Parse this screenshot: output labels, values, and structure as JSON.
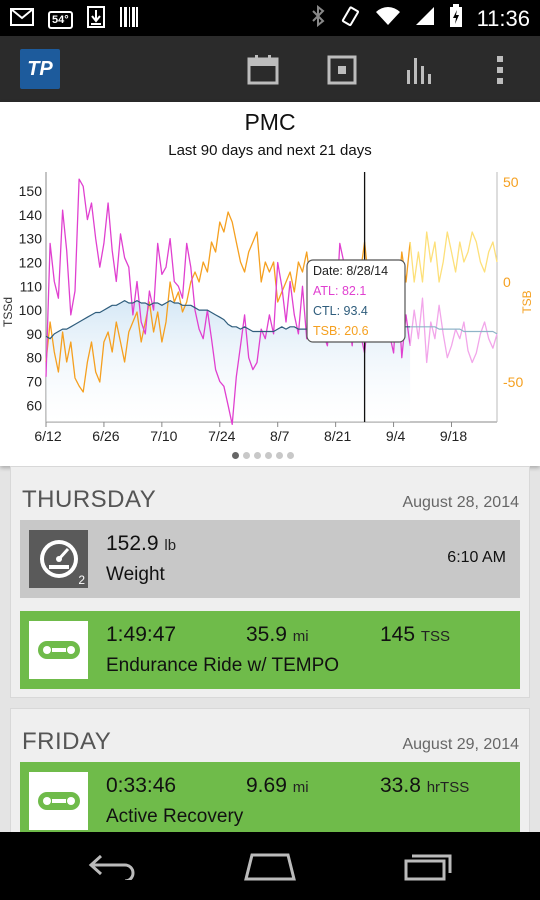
{
  "status_bar": {
    "time": "11:36",
    "temperature": "54°",
    "icons": [
      "gmail-icon",
      "weather-icon",
      "download-icon",
      "barcode-icon",
      "bluetooth-icon",
      "vibrate-icon",
      "wifi-icon",
      "signal-icon",
      "battery-icon"
    ]
  },
  "action_bar": {
    "logo_text": "TP",
    "icons": [
      "calendar-icon",
      "workout-icon",
      "dashboard-chart-icon",
      "overflow-menu-icon"
    ]
  },
  "chart": {
    "title": "PMC",
    "subtitle": "Last 90 days and next 21 days",
    "pager": {
      "pages": 6,
      "active": 0
    }
  },
  "chart_data": {
    "type": "line",
    "title": "PMC",
    "subtitle": "Last 90 days and next 21 days",
    "ylabel": "TSSd",
    "y2label": "TSB",
    "x_ticks": [
      "6/12",
      "6/26",
      "7/10",
      "7/24",
      "8/7",
      "8/21",
      "9/4",
      "9/18"
    ],
    "y_ticks": [
      60,
      70,
      80,
      90,
      100,
      110,
      120,
      130,
      140,
      150
    ],
    "y2_ticks": [
      50,
      0,
      -50
    ],
    "ylim": [
      53,
      158
    ],
    "y2lim": [
      -70,
      55
    ],
    "cursor_index": 77,
    "cursor_label": "8/28",
    "colors": {
      "atl": "#e040d0",
      "ctl": "#2f5d7c",
      "tsb": "#f5a020",
      "ctl_fill": "#d6e8f6",
      "future_atl": "#f2a6ea",
      "future_ctl": "#8fb5c8",
      "future_tsb": "#fde07a"
    },
    "tooltip": {
      "date": "Date: 8/28/14",
      "atl": "ATL: 82.1",
      "ctl": "CTL: 93.4",
      "tsb": "TSB: 20.6"
    },
    "series": [
      {
        "key": "atl",
        "axis": "left",
        "values": [
          72,
          128,
          112,
          105,
          142,
          125,
          98,
          108,
          155,
          152,
          138,
          145,
          130,
          118,
          128,
          145,
          125,
          112,
          132,
          122,
          118,
          98,
          112,
          95,
          90,
          108,
          100,
          128,
          115,
          118,
          130,
          112,
          110,
          105,
          128,
          118,
          100,
          92,
          88,
          100,
          88,
          75,
          70,
          68,
          60,
          52,
          72,
          85,
          98,
          80,
          75,
          78,
          92,
          88,
          98,
          90,
          120,
          110,
          95,
          112,
          98,
          90,
          110,
          88,
          100,
          95,
          112,
          90,
          85,
          105,
          95,
          128,
          120,
          98,
          85,
          110,
          90,
          82,
          100,
          92,
          105,
          88,
          95,
          90,
          82,
          110,
          80,
          98,
          85,
          100,
          88,
          105,
          78,
          95,
          88,
          102,
          90,
          80,
          85,
          92,
          88,
          95,
          83,
          78,
          82,
          90,
          95,
          88,
          84,
          90
        ],
        "future_from": 88
      },
      {
        "key": "ctl",
        "axis": "left",
        "values": [
          89,
          88,
          90,
          91,
          92,
          92,
          93,
          94,
          95,
          96,
          97,
          98,
          99,
          99,
          100,
          101,
          102,
          102,
          103,
          104,
          103,
          103,
          104,
          103,
          103,
          102,
          103,
          103,
          102,
          103,
          104,
          103,
          103,
          102,
          102,
          102,
          101,
          100,
          100,
          100,
          99,
          98,
          97,
          96,
          94,
          93,
          93,
          92,
          93,
          92,
          91,
          91,
          91,
          91,
          91,
          91,
          92,
          93,
          92,
          93,
          93,
          92,
          92,
          92,
          92,
          93,
          93,
          92,
          92,
          92,
          92,
          94,
          94,
          94,
          93,
          93,
          93,
          93,
          93,
          93,
          93,
          93,
          93,
          93,
          93,
          93,
          93,
          93,
          93,
          93,
          93,
          93,
          93,
          93,
          93,
          92,
          92,
          92,
          92,
          92,
          92,
          91,
          91,
          91,
          91,
          91,
          91,
          91,
          91,
          90
        ],
        "future_from": 88
      },
      {
        "key": "tsb",
        "axis": "right",
        "values": [
          -40,
          -20,
          -35,
          -45,
          -25,
          -40,
          -30,
          -48,
          -52,
          -55,
          -40,
          -30,
          -45,
          -50,
          -30,
          -25,
          -35,
          -20,
          -30,
          -40,
          -25,
          -20,
          -15,
          -30,
          -20,
          -10,
          -25,
          -15,
          -30,
          -20,
          0,
          -10,
          -5,
          -15,
          -10,
          0,
          5,
          0,
          10,
          5,
          20,
          15,
          30,
          25,
          35,
          30,
          20,
          10,
          5,
          15,
          20,
          25,
          0,
          10,
          5,
          10,
          -10,
          -5,
          0,
          5,
          -5,
          10,
          5,
          15,
          0,
          5,
          -10,
          5,
          10,
          0,
          5,
          -20,
          -15,
          -5,
          10,
          -10,
          5,
          20,
          0,
          5,
          -5,
          10,
          0,
          5,
          10,
          -10,
          15,
          0,
          20,
          0,
          15,
          0,
          25,
          10,
          20,
          0,
          10,
          25,
          15,
          5,
          20,
          10,
          15,
          25,
          20,
          10,
          5,
          15,
          20,
          10
        ],
        "future_from": 88
      }
    ]
  },
  "days": [
    {
      "name": "THURSDAY",
      "date": "August 28, 2014",
      "entries": [
        {
          "type": "metric",
          "value": "152.9",
          "unit": "lb",
          "name": "Weight",
          "time": "6:10 AM",
          "badge": "2",
          "icon": "scale-gauge-icon"
        },
        {
          "type": "workout",
          "duration": "1:49:47",
          "distance": "35.9",
          "distance_unit": "mi",
          "tss": "145",
          "tss_unit": "TSS",
          "name": "Endurance Ride w/ TEMPO",
          "icon": "bike-chain-icon"
        }
      ]
    },
    {
      "name": "FRIDAY",
      "date": "August 29, 2014",
      "entries": [
        {
          "type": "workout",
          "duration": "0:33:46",
          "distance": "9.69",
          "distance_unit": "mi",
          "tss": "33.8",
          "tss_unit": "hrTSS",
          "name": "Active Recovery",
          "icon": "bike-chain-icon"
        }
      ]
    }
  ],
  "nav_bar": {
    "icons": [
      "back-icon",
      "home-icon",
      "recent-apps-icon"
    ]
  }
}
